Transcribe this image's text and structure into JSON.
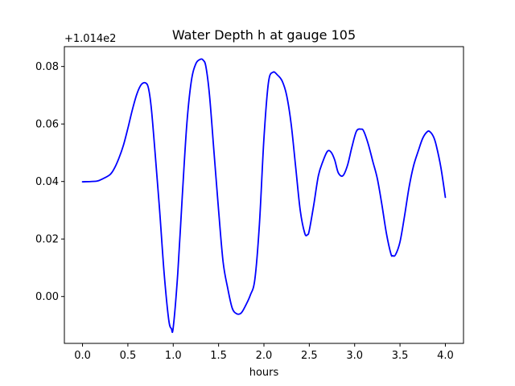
{
  "chart_data": {
    "type": "line",
    "title": "Water Depth h at gauge 105",
    "xlabel": "hours",
    "ylabel": "",
    "y_offset_label": "+1.014e2",
    "xlim": [
      -0.2,
      4.2
    ],
    "ylim": [
      -0.0163,
      0.0869
    ],
    "x_ticks": [
      0.0,
      0.5,
      1.0,
      1.5,
      2.0,
      2.5,
      3.0,
      3.5,
      4.0
    ],
    "x_tick_labels": [
      "0.0",
      "0.5",
      "1.0",
      "1.5",
      "2.0",
      "2.5",
      "3.0",
      "3.5",
      "4.0"
    ],
    "y_ticks": [
      0.0,
      0.02,
      0.04,
      0.06,
      0.08
    ],
    "y_tick_labels": [
      "0.00",
      "0.02",
      "0.04",
      "0.06",
      "0.08"
    ],
    "grid": false,
    "legend": "none",
    "series": [
      {
        "color": "#0000ff",
        "x": [
          0.0,
          0.15,
          0.2,
          0.3,
          0.35,
          0.4,
          0.45,
          0.5,
          0.55,
          0.6,
          0.65,
          0.7,
          0.73,
          0.76,
          0.8,
          0.85,
          0.9,
          0.95,
          0.98,
          1.0,
          1.05,
          1.1,
          1.15,
          1.2,
          1.25,
          1.3,
          1.33,
          1.36,
          1.4,
          1.45,
          1.5,
          1.55,
          1.6,
          1.65,
          1.7,
          1.75,
          1.8,
          1.85,
          1.9,
          1.95,
          2.0,
          2.05,
          2.1,
          2.15,
          2.2,
          2.25,
          2.3,
          2.35,
          2.4,
          2.45,
          2.48,
          2.5,
          2.55,
          2.6,
          2.65,
          2.7,
          2.74,
          2.78,
          2.82,
          2.87,
          2.92,
          2.97,
          3.02,
          3.07,
          3.1,
          3.15,
          3.2,
          3.25,
          3.3,
          3.35,
          3.4,
          3.42,
          3.45,
          3.5,
          3.55,
          3.6,
          3.65,
          3.7,
          3.75,
          3.8,
          3.83,
          3.87,
          3.9,
          3.95,
          4.0
        ],
        "y": [
          0.0399,
          0.0401,
          0.0406,
          0.0423,
          0.0445,
          0.048,
          0.0525,
          0.0585,
          0.065,
          0.0705,
          0.0738,
          0.0742,
          0.072,
          0.065,
          0.05,
          0.03,
          0.008,
          -0.008,
          -0.0112,
          -0.0108,
          0.008,
          0.035,
          0.06,
          0.075,
          0.081,
          0.0825,
          0.0822,
          0.08,
          0.07,
          0.05,
          0.03,
          0.012,
          0.003,
          -0.004,
          -0.006,
          -0.0057,
          -0.003,
          0.0005,
          0.006,
          0.025,
          0.055,
          0.0745,
          0.078,
          0.077,
          0.075,
          0.07,
          0.06,
          0.045,
          0.03,
          0.022,
          0.0215,
          0.023,
          0.032,
          0.042,
          0.047,
          0.0505,
          0.0502,
          0.0475,
          0.043,
          0.042,
          0.0455,
          0.052,
          0.0575,
          0.0582,
          0.0575,
          0.053,
          0.047,
          0.041,
          0.032,
          0.022,
          0.0148,
          0.0142,
          0.0145,
          0.019,
          0.028,
          0.038,
          0.0455,
          0.0505,
          0.055,
          0.0573,
          0.0573,
          0.0555,
          0.0525,
          0.045,
          0.0345
        ]
      }
    ]
  }
}
